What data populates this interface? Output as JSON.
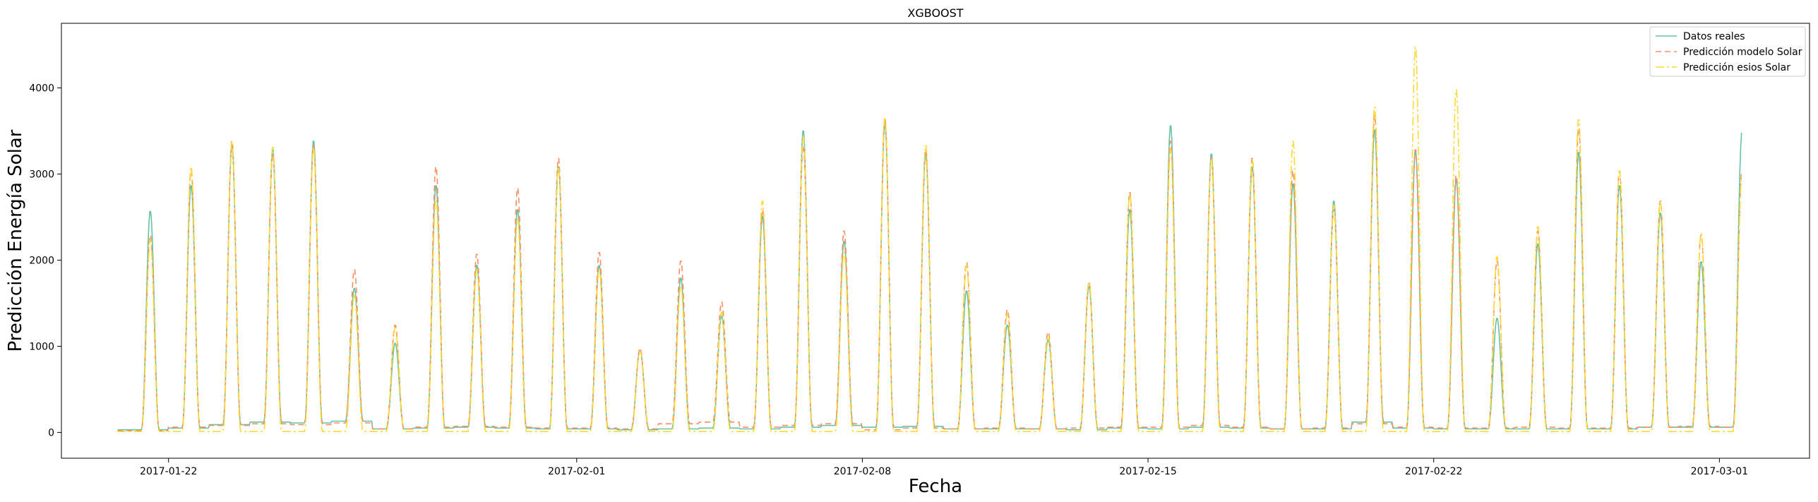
{
  "chart_data": {
    "type": "line",
    "title": "XGBOOST",
    "xlabel": "Fecha",
    "ylabel": "Predicción Energía Solar",
    "xlim": [
      "2017-01-19T09:00",
      "2017-03-03T05:00"
    ],
    "ylim": [
      -300,
      4750
    ],
    "x_ticks": [
      "2017-01-22",
      "2017-02-01",
      "2017-02-08",
      "2017-02-15",
      "2017-02-22",
      "2017-03-01"
    ],
    "y_ticks": [
      0,
      1000,
      2000,
      3000,
      4000
    ],
    "grid": false,
    "legend_position": "top-right",
    "series": [
      {
        "name": "Datos reales",
        "color": "#66c2a5",
        "line_style": "solid",
        "x_dates": [
          "2017-01-21",
          "2017-01-22",
          "2017-01-23",
          "2017-01-24",
          "2017-01-25",
          "2017-01-26",
          "2017-01-27",
          "2017-01-28",
          "2017-01-29",
          "2017-01-30",
          "2017-01-31",
          "2017-02-01",
          "2017-02-02",
          "2017-02-03",
          "2017-02-04",
          "2017-02-05",
          "2017-02-06",
          "2017-02-07",
          "2017-02-08",
          "2017-02-09",
          "2017-02-10",
          "2017-02-11",
          "2017-02-12",
          "2017-02-13",
          "2017-02-14",
          "2017-02-15",
          "2017-02-16",
          "2017-02-17",
          "2017-02-18",
          "2017-02-19",
          "2017-02-20",
          "2017-02-21",
          "2017-02-22",
          "2017-02-23",
          "2017-02-24",
          "2017-02-25",
          "2017-02-26",
          "2017-02-27",
          "2017-02-28",
          "2017-03-01"
        ],
        "daily_peak": [
          2580,
          2880,
          3350,
          3300,
          3400,
          1680,
          1040,
          2880,
          1950,
          2600,
          3100,
          1950,
          960,
          1800,
          1360,
          2520,
          3520,
          2230,
          3600,
          3250,
          1650,
          1250,
          1080,
          1700,
          2600,
          3580,
          3250,
          3100,
          2900,
          2700,
          3530,
          3280,
          2950,
          1330,
          2200,
          3270,
          2880,
          2560,
          1990,
          3500
        ],
        "night_level": [
          30,
          50,
          90,
          120,
          110,
          130,
          40,
          50,
          60,
          50,
          40,
          40,
          30,
          40,
          50,
          40,
          60,
          80,
          60,
          70,
          40,
          40,
          40,
          30,
          50,
          40,
          60,
          50,
          40,
          40,
          120,
          50,
          40,
          40,
          40,
          40,
          40,
          60,
          60,
          60
        ]
      },
      {
        "name": "Predicción modelo Solar",
        "color": "#fc8d62",
        "line_style": "dashed",
        "x_dates": [
          "2017-01-21",
          "2017-01-22",
          "2017-01-23",
          "2017-01-24",
          "2017-01-25",
          "2017-01-26",
          "2017-01-27",
          "2017-01-28",
          "2017-01-29",
          "2017-01-30",
          "2017-01-31",
          "2017-02-01",
          "2017-02-02",
          "2017-02-03",
          "2017-02-04",
          "2017-02-05",
          "2017-02-06",
          "2017-02-07",
          "2017-02-08",
          "2017-02-09",
          "2017-02-10",
          "2017-02-11",
          "2017-02-12",
          "2017-02-13",
          "2017-02-14",
          "2017-02-15",
          "2017-02-16",
          "2017-02-17",
          "2017-02-18",
          "2017-02-19",
          "2017-02-20",
          "2017-02-21",
          "2017-02-22",
          "2017-02-23",
          "2017-02-24",
          "2017-02-25",
          "2017-02-26",
          "2017-02-27",
          "2017-02-28",
          "2017-03-01"
        ],
        "daily_peak": [
          2300,
          3050,
          3400,
          3250,
          3350,
          1900,
          1250,
          3100,
          2080,
          2850,
          3200,
          2100,
          980,
          2000,
          1520,
          2600,
          3350,
          2350,
          3650,
          3300,
          1980,
          1430,
          1170,
          1750,
          2800,
          3400,
          3200,
          3200,
          3050,
          2600,
          3700,
          3300,
          3000,
          2000,
          2350,
          3550,
          3050,
          2700,
          2300,
          3050
        ],
        "night_level": [
          20,
          60,
          80,
          100,
          90,
          110,
          40,
          60,
          70,
          60,
          50,
          50,
          40,
          100,
          120,
          60,
          80,
          100,
          30,
          50,
          40,
          50,
          40,
          50,
          60,
          60,
          80,
          60,
          40,
          50,
          100,
          60,
          50,
          50,
          60,
          50,
          50,
          60,
          70,
          60
        ]
      },
      {
        "name": "Predicción esios Solar",
        "color": "#ffd92f",
        "line_style": "dashdot",
        "x_dates": [
          "2017-01-21",
          "2017-01-22",
          "2017-01-23",
          "2017-01-24",
          "2017-01-25",
          "2017-01-26",
          "2017-01-27",
          "2017-01-28",
          "2017-01-29",
          "2017-01-30",
          "2017-01-31",
          "2017-02-01",
          "2017-02-02",
          "2017-02-03",
          "2017-02-04",
          "2017-02-05",
          "2017-02-06",
          "2017-02-07",
          "2017-02-08",
          "2017-02-09",
          "2017-02-10",
          "2017-02-11",
          "2017-02-12",
          "2017-02-13",
          "2017-02-14",
          "2017-02-15",
          "2017-02-16",
          "2017-02-17",
          "2017-02-18",
          "2017-02-19",
          "2017-02-20",
          "2017-02-21",
          "2017-02-22",
          "2017-02-23",
          "2017-02-24",
          "2017-02-25",
          "2017-02-26",
          "2017-02-27",
          "2017-02-28",
          "2017-03-01"
        ],
        "daily_peak": [
          2250,
          3100,
          3400,
          3330,
          3320,
          1600,
          1220,
          2720,
          1900,
          2500,
          3100,
          1900,
          950,
          1700,
          1400,
          2700,
          3450,
          2100,
          3680,
          3350,
          1950,
          1380,
          1130,
          1750,
          2780,
          3300,
          3200,
          3180,
          3400,
          2650,
          3800,
          4500,
          4000,
          2050,
          2400,
          3650,
          3050,
          2700,
          2320,
          3000
        ],
        "night_level": [
          10,
          10,
          10,
          10,
          10,
          10,
          10,
          10,
          10,
          10,
          10,
          10,
          10,
          10,
          10,
          10,
          10,
          10,
          10,
          10,
          10,
          10,
          10,
          10,
          10,
          10,
          10,
          10,
          10,
          10,
          10,
          10,
          10,
          10,
          10,
          10,
          10,
          10,
          10,
          10
        ]
      }
    ]
  }
}
